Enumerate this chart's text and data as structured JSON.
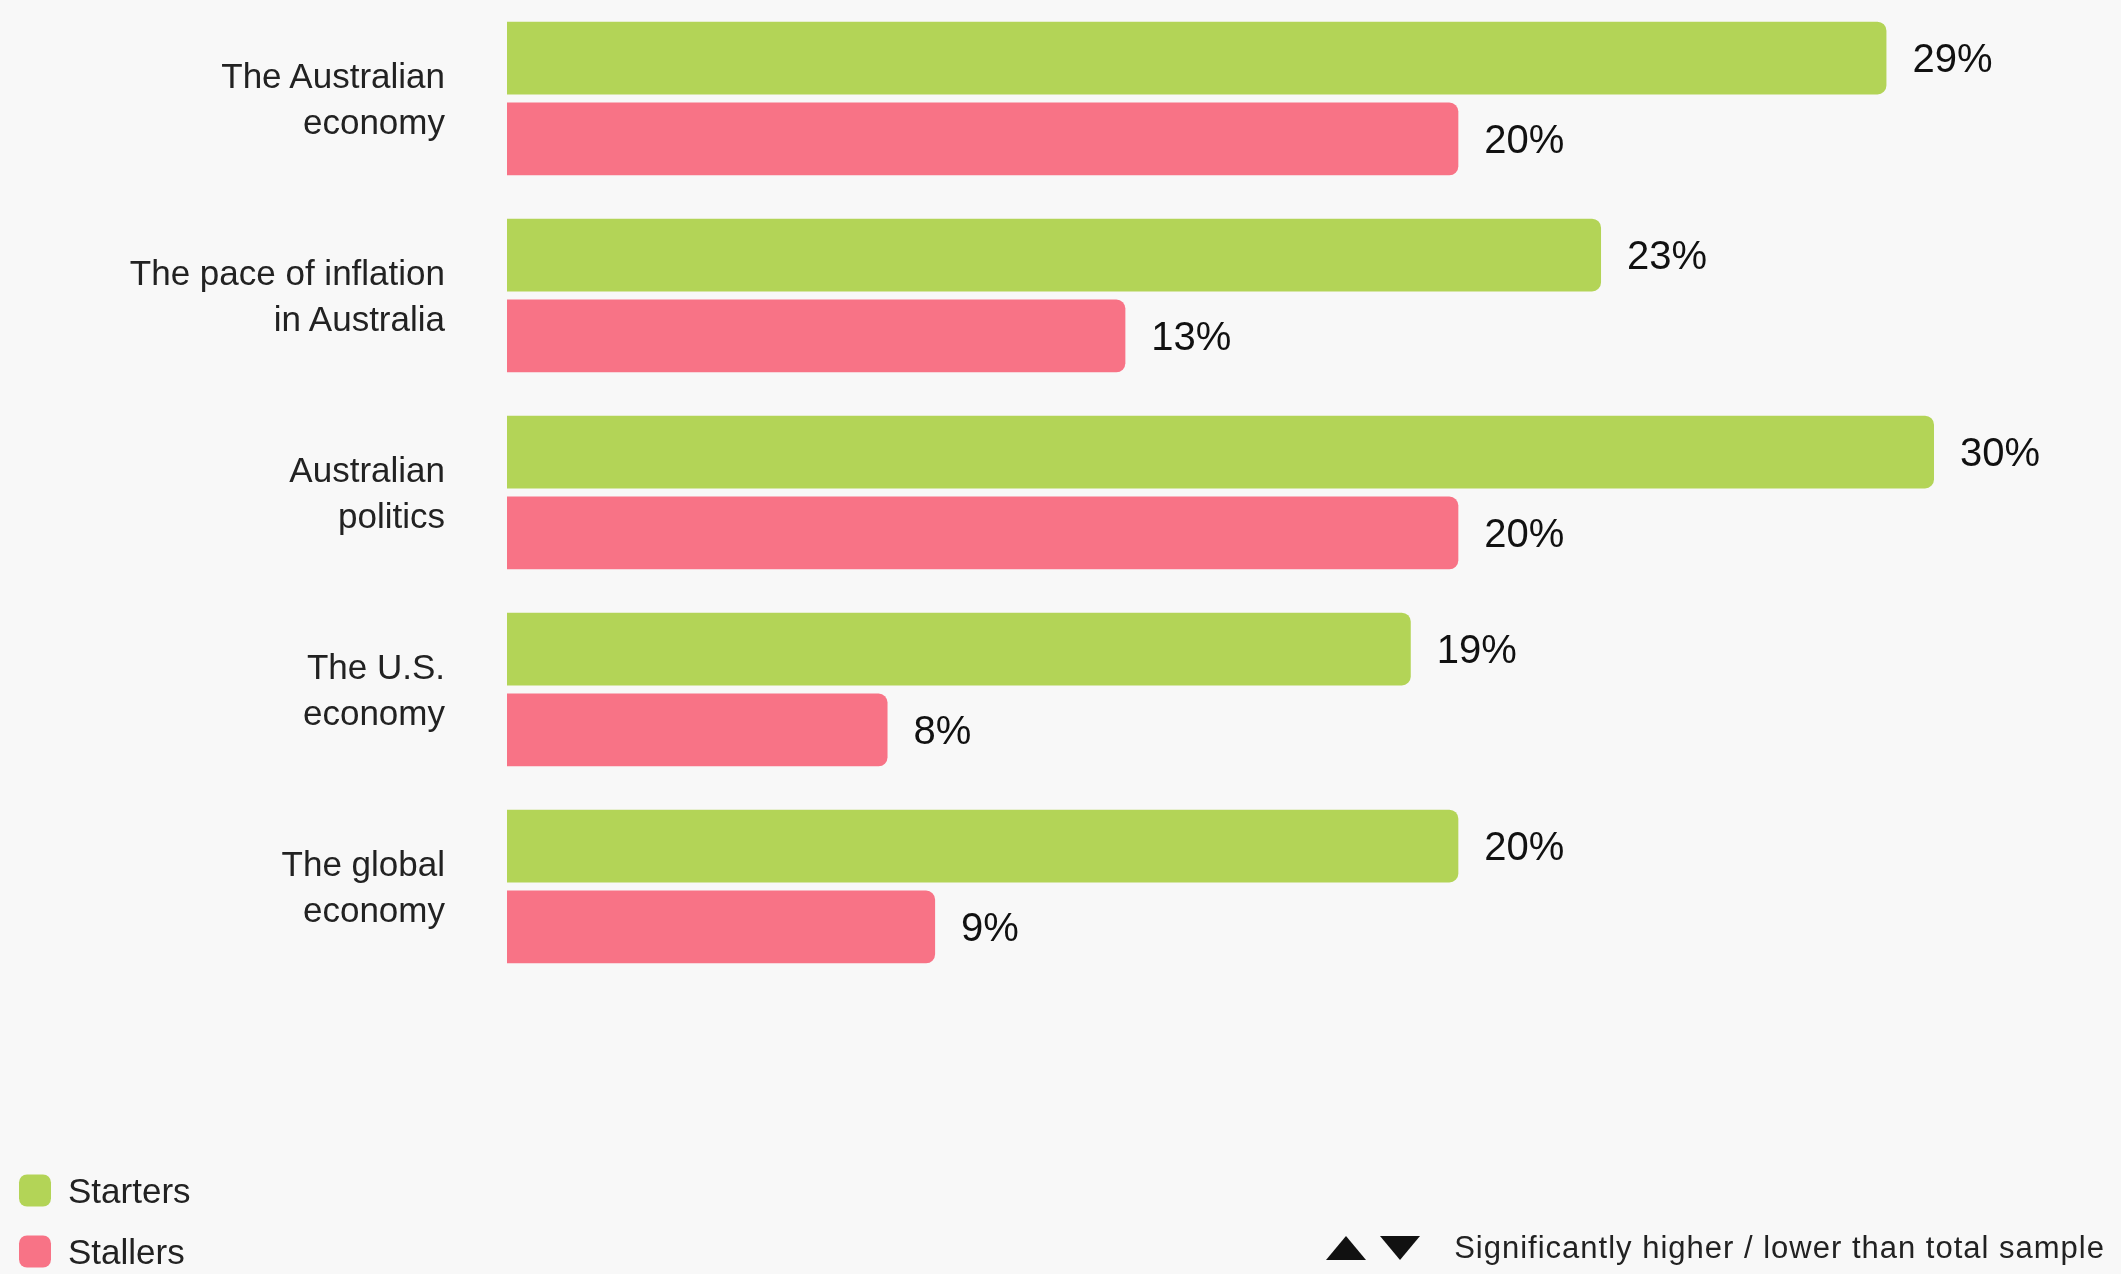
{
  "chart_data": {
    "type": "bar",
    "orientation": "horizontal",
    "categories": [
      "The Australian\neconomy",
      "The pace of inflation\nin Australia",
      "Australian\npolitics",
      "The U.S.\neconomy",
      "The global\neconomy"
    ],
    "series": [
      {
        "name": "Starters",
        "color": "#b3d457",
        "values": [
          29,
          23,
          30,
          19,
          20
        ],
        "value_labels": [
          "29%",
          "23%",
          "30%",
          "19%",
          "20%"
        ]
      },
      {
        "name": "Stallers",
        "color": "#f87386",
        "values": [
          20,
          13,
          20,
          8,
          9
        ],
        "value_labels": [
          "20%",
          "13%",
          "20%",
          "8%",
          "9%"
        ]
      }
    ],
    "legend": "bottom left",
    "annotations": [
      "Significantly higher / lower than total sample"
    ]
  }
}
